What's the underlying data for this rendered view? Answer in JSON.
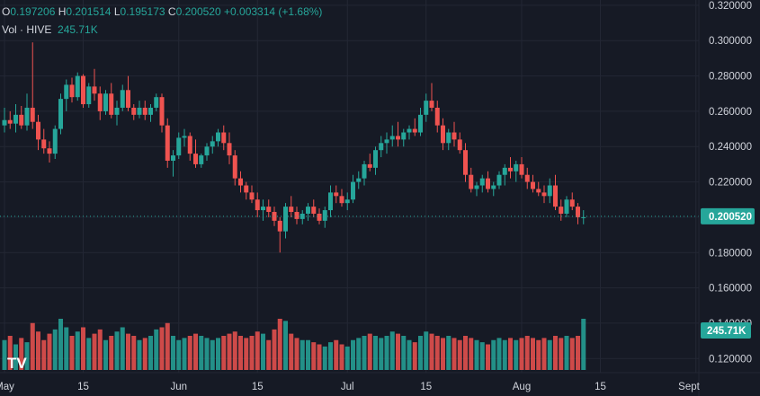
{
  "legend": {
    "o_label": "O",
    "o_value": "0.197206",
    "h_label": "H",
    "h_value": "0.201514",
    "l_label": "L",
    "l_value": "0.195173",
    "c_label": "C",
    "c_value": "0.200520",
    "change": "+0.003314 (+1.68%)",
    "vol_label": "Vol · HIVE",
    "vol_value": "245.71K"
  },
  "colors": {
    "background": "#161a25",
    "grid": "#232734",
    "up": "#26a69a",
    "down": "#ef5350",
    "text": "#d1d4dc",
    "price_badge": "#26a69a"
  },
  "logo_text": "TV",
  "chart_data": {
    "type": "candlestick",
    "title": "",
    "symbol": "HIVE",
    "price_axis": {
      "ticks": [
        "0.320000",
        "0.300000",
        "0.280000",
        "0.260000",
        "0.240000",
        "0.220000",
        "0.200000",
        "0.180000",
        "0.160000",
        "0.140000",
        "0.120000"
      ],
      "tick_values": [
        0.32,
        0.3,
        0.28,
        0.26,
        0.24,
        0.22,
        0.2,
        0.18,
        0.16,
        0.14,
        0.12
      ],
      "ylim": [
        0.112,
        0.323
      ],
      "current_price": "0.200520",
      "current_volume_label": "245.71K"
    },
    "time_axis": {
      "labels": [
        "May",
        "15",
        "Jun",
        "15",
        "Jul",
        "15",
        "Aug",
        "15",
        "Sept"
      ],
      "label_days": [
        1,
        15,
        32,
        46,
        62,
        76,
        93,
        107,
        124
      ]
    },
    "candles": [
      [
        0.252,
        0.262,
        0.248,
        0.255,
        70
      ],
      [
        0.255,
        0.26,
        0.25,
        0.253,
        80
      ],
      [
        0.253,
        0.264,
        0.248,
        0.258,
        60
      ],
      [
        0.258,
        0.263,
        0.25,
        0.252,
        75
      ],
      [
        0.252,
        0.27,
        0.249,
        0.262,
        65
      ],
      [
        0.262,
        0.299,
        0.25,
        0.254,
        110
      ],
      [
        0.254,
        0.258,
        0.238,
        0.244,
        90
      ],
      [
        0.244,
        0.25,
        0.236,
        0.239,
        70
      ],
      [
        0.239,
        0.243,
        0.231,
        0.236,
        85
      ],
      [
        0.236,
        0.252,
        0.233,
        0.25,
        95
      ],
      [
        0.25,
        0.27,
        0.247,
        0.267,
        120
      ],
      [
        0.267,
        0.278,
        0.26,
        0.275,
        100
      ],
      [
        0.275,
        0.279,
        0.265,
        0.268,
        80
      ],
      [
        0.268,
        0.282,
        0.266,
        0.28,
        90
      ],
      [
        0.28,
        0.281,
        0.262,
        0.264,
        100
      ],
      [
        0.264,
        0.276,
        0.262,
        0.274,
        75
      ],
      [
        0.274,
        0.284,
        0.266,
        0.27,
        85
      ],
      [
        0.27,
        0.274,
        0.255,
        0.26,
        95
      ],
      [
        0.26,
        0.272,
        0.258,
        0.27,
        70
      ],
      [
        0.27,
        0.276,
        0.256,
        0.258,
        80
      ],
      [
        0.258,
        0.266,
        0.252,
        0.262,
        90
      ],
      [
        0.262,
        0.275,
        0.26,
        0.272,
        100
      ],
      [
        0.272,
        0.28,
        0.26,
        0.262,
        85
      ],
      [
        0.262,
        0.264,
        0.255,
        0.258,
        80
      ],
      [
        0.258,
        0.266,
        0.256,
        0.262,
        70
      ],
      [
        0.262,
        0.266,
        0.255,
        0.258,
        75
      ],
      [
        0.258,
        0.264,
        0.254,
        0.262,
        80
      ],
      [
        0.262,
        0.27,
        0.26,
        0.268,
        95
      ],
      [
        0.268,
        0.27,
        0.248,
        0.252,
        100
      ],
      [
        0.252,
        0.256,
        0.228,
        0.232,
        110
      ],
      [
        0.232,
        0.238,
        0.223,
        0.235,
        80
      ],
      [
        0.235,
        0.248,
        0.233,
        0.245,
        70
      ],
      [
        0.245,
        0.25,
        0.24,
        0.246,
        75
      ],
      [
        0.246,
        0.248,
        0.232,
        0.236,
        80
      ],
      [
        0.236,
        0.244,
        0.228,
        0.23,
        85
      ],
      [
        0.23,
        0.236,
        0.228,
        0.235,
        80
      ],
      [
        0.235,
        0.242,
        0.232,
        0.24,
        75
      ],
      [
        0.24,
        0.246,
        0.236,
        0.243,
        70
      ],
      [
        0.243,
        0.25,
        0.24,
        0.248,
        75
      ],
      [
        0.248,
        0.252,
        0.238,
        0.242,
        80
      ],
      [
        0.242,
        0.248,
        0.23,
        0.235,
        85
      ],
      [
        0.235,
        0.238,
        0.218,
        0.222,
        90
      ],
      [
        0.222,
        0.226,
        0.214,
        0.218,
        80
      ],
      [
        0.218,
        0.22,
        0.21,
        0.214,
        75
      ],
      [
        0.214,
        0.218,
        0.208,
        0.21,
        80
      ],
      [
        0.21,
        0.214,
        0.2,
        0.204,
        90
      ],
      [
        0.204,
        0.21,
        0.198,
        0.206,
        85
      ],
      [
        0.206,
        0.21,
        0.2,
        0.203,
        70
      ],
      [
        0.203,
        0.206,
        0.195,
        0.198,
        95
      ],
      [
        0.198,
        0.2,
        0.18,
        0.192,
        120
      ],
      [
        0.192,
        0.208,
        0.188,
        0.206,
        115
      ],
      [
        0.206,
        0.212,
        0.2,
        0.203,
        85
      ],
      [
        0.203,
        0.206,
        0.196,
        0.199,
        75
      ],
      [
        0.199,
        0.204,
        0.196,
        0.202,
        70
      ],
      [
        0.202,
        0.208,
        0.198,
        0.206,
        70
      ],
      [
        0.206,
        0.21,
        0.2,
        0.202,
        65
      ],
      [
        0.202,
        0.205,
        0.196,
        0.198,
        60
      ],
      [
        0.198,
        0.206,
        0.194,
        0.204,
        55
      ],
      [
        0.204,
        0.218,
        0.2,
        0.214,
        65
      ],
      [
        0.214,
        0.218,
        0.208,
        0.212,
        70
      ],
      [
        0.212,
        0.216,
        0.206,
        0.208,
        60
      ],
      [
        0.208,
        0.214,
        0.204,
        0.21,
        55
      ],
      [
        0.21,
        0.224,
        0.208,
        0.22,
        70
      ],
      [
        0.22,
        0.226,
        0.216,
        0.222,
        75
      ],
      [
        0.222,
        0.232,
        0.218,
        0.23,
        80
      ],
      [
        0.23,
        0.236,
        0.226,
        0.228,
        85
      ],
      [
        0.228,
        0.24,
        0.224,
        0.238,
        80
      ],
      [
        0.238,
        0.246,
        0.234,
        0.242,
        75
      ],
      [
        0.242,
        0.248,
        0.236,
        0.244,
        80
      ],
      [
        0.244,
        0.252,
        0.24,
        0.246,
        90
      ],
      [
        0.246,
        0.254,
        0.24,
        0.244,
        85
      ],
      [
        0.244,
        0.25,
        0.24,
        0.248,
        80
      ],
      [
        0.248,
        0.252,
        0.244,
        0.25,
        70
      ],
      [
        0.25,
        0.256,
        0.246,
        0.248,
        65
      ],
      [
        0.248,
        0.262,
        0.246,
        0.258,
        80
      ],
      [
        0.258,
        0.27,
        0.254,
        0.266,
        90
      ],
      [
        0.266,
        0.276,
        0.26,
        0.262,
        85
      ],
      [
        0.262,
        0.266,
        0.248,
        0.252,
        80
      ],
      [
        0.252,
        0.256,
        0.238,
        0.242,
        75
      ],
      [
        0.242,
        0.25,
        0.238,
        0.248,
        80
      ],
      [
        0.248,
        0.254,
        0.24,
        0.244,
        75
      ],
      [
        0.244,
        0.248,
        0.236,
        0.238,
        70
      ],
      [
        0.238,
        0.242,
        0.22,
        0.224,
        80
      ],
      [
        0.224,
        0.228,
        0.214,
        0.216,
        75
      ],
      [
        0.216,
        0.22,
        0.212,
        0.218,
        70
      ],
      [
        0.218,
        0.224,
        0.214,
        0.222,
        65
      ],
      [
        0.222,
        0.226,
        0.214,
        0.216,
        60
      ],
      [
        0.216,
        0.22,
        0.212,
        0.218,
        70
      ],
      [
        0.218,
        0.226,
        0.216,
        0.224,
        75
      ],
      [
        0.224,
        0.23,
        0.218,
        0.228,
        70
      ],
      [
        0.228,
        0.234,
        0.222,
        0.226,
        75
      ],
      [
        0.226,
        0.232,
        0.22,
        0.23,
        70
      ],
      [
        0.23,
        0.234,
        0.222,
        0.224,
        75
      ],
      [
        0.224,
        0.228,
        0.216,
        0.22,
        80
      ],
      [
        0.22,
        0.224,
        0.214,
        0.216,
        75
      ],
      [
        0.216,
        0.22,
        0.212,
        0.214,
        70
      ],
      [
        0.214,
        0.218,
        0.208,
        0.212,
        75
      ],
      [
        0.212,
        0.222,
        0.208,
        0.218,
        70
      ],
      [
        0.218,
        0.224,
        0.204,
        0.206,
        80
      ],
      [
        0.206,
        0.21,
        0.198,
        0.202,
        75
      ],
      [
        0.202,
        0.212,
        0.2,
        0.21,
        80
      ],
      [
        0.21,
        0.214,
        0.204,
        0.206,
        75
      ],
      [
        0.206,
        0.208,
        0.196,
        0.2,
        80
      ],
      [
        0.2,
        0.204,
        0.196,
        0.2,
        120
      ]
    ]
  }
}
